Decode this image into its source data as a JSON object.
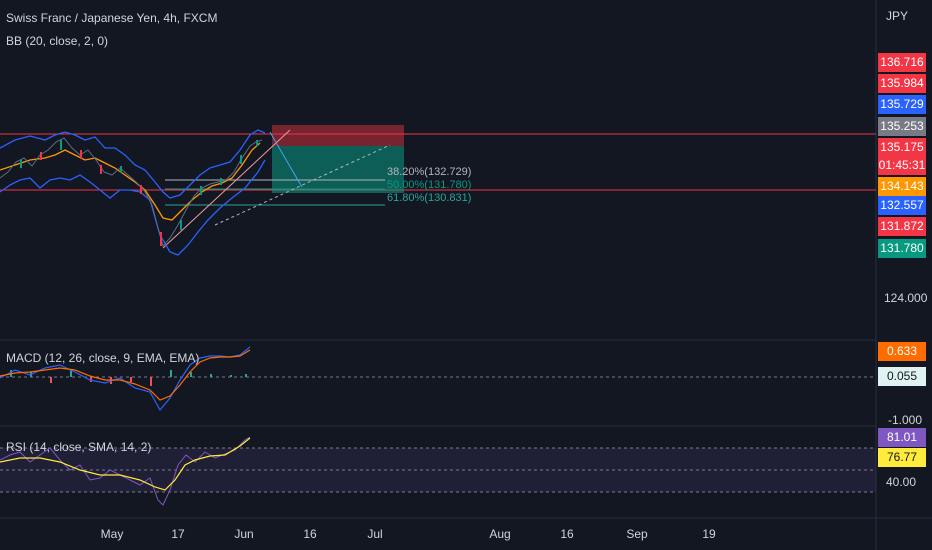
{
  "header": {
    "symbol_title": "Swiss Franc / Japanese Yen, 4h, FXCM",
    "indicator_bb": "BB (20, close, 2, 0)",
    "currency": "JPY"
  },
  "price_scale": {
    "labels": [
      {
        "value": "136.716",
        "color": "#f23645"
      },
      {
        "value": "135.984",
        "color": "#f23645"
      },
      {
        "value": "135.729",
        "color": "#2962ff"
      },
      {
        "value": "135.253",
        "color": "#787b86"
      },
      {
        "value": "135.175",
        "color": "#f23645"
      },
      {
        "value": "01:45:31",
        "color": "#f23645"
      },
      {
        "value": "134.143",
        "color": "#ff9800"
      },
      {
        "value": "132.557",
        "color": "#2962ff"
      },
      {
        "value": "131.872",
        "color": "#f23645"
      },
      {
        "value": "131.780",
        "color": "#089981"
      }
    ],
    "static_tick": "124.000"
  },
  "fibonacci": {
    "level_382": "38.20%(132.729)",
    "level_500": "50.00%(131.780)",
    "level_618": "61.80%(130.831)"
  },
  "macd": {
    "legend": "MACD (12, 26, close, 9, EMA, EMA)",
    "value_1": "0.633",
    "value_2": "0.055",
    "tick": "-1.000"
  },
  "rsi": {
    "legend": "RSI (14, close, SMA, 14, 2)",
    "value_1": "81.01",
    "value_2": "76.77",
    "tick": "40.00"
  },
  "time_axis": [
    "May",
    "17",
    "Jun",
    "16",
    "Jul",
    "Aug",
    "16",
    "Sep",
    "19"
  ],
  "colors": {
    "background": "#131722",
    "bb_band": "#2962ff",
    "price_line": "#ff9800",
    "candle_up": "#089981",
    "candle_down": "#f23645",
    "rsi_line": "#ffeb3b",
    "rsi_band": "#7e57c2"
  }
}
